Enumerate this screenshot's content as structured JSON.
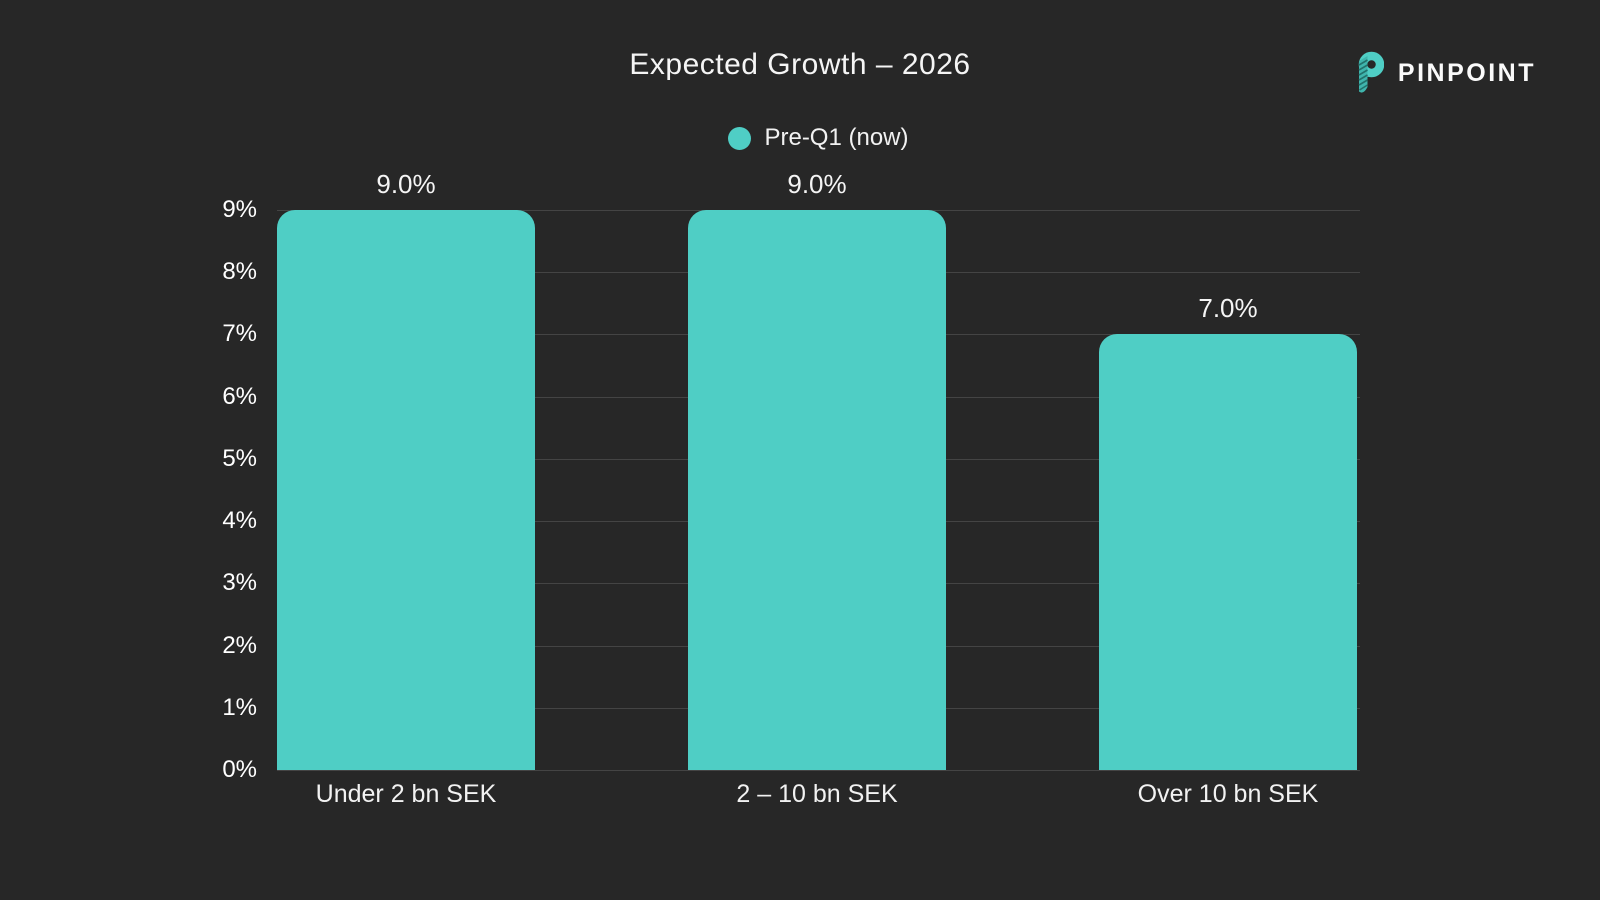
{
  "page": {
    "background_color": "#272727",
    "accent_color": "#4FCEC5",
    "text_color": "#f2f2f2",
    "gridline_color": "#444444"
  },
  "header": {
    "logo": {
      "text": "PINPOINT",
      "icon": "pinpoint-p-icon",
      "icon_color": "#4FCEC5"
    }
  },
  "chart_data": {
    "type": "bar",
    "title": "Expected Growth – 2026",
    "categories": [
      "Under 2 bn SEK",
      "2 – 10 bn SEK",
      "Over 10 bn SEK"
    ],
    "series": [
      {
        "name": "Pre-Q1 (now)",
        "color": "#4FCEC5",
        "values": [
          9.0,
          9.0,
          7.0
        ],
        "value_labels": [
          "9.0%",
          "9.0%",
          "7.0%"
        ]
      }
    ],
    "xlabel": "",
    "ylabel": "",
    "ylim": [
      0,
      9
    ],
    "yticks": [
      "0%",
      "1%",
      "2%",
      "3%",
      "4%",
      "5%",
      "6%",
      "7%",
      "8%",
      "9%"
    ],
    "grid": "horizontal",
    "legend_position": "top-center"
  }
}
